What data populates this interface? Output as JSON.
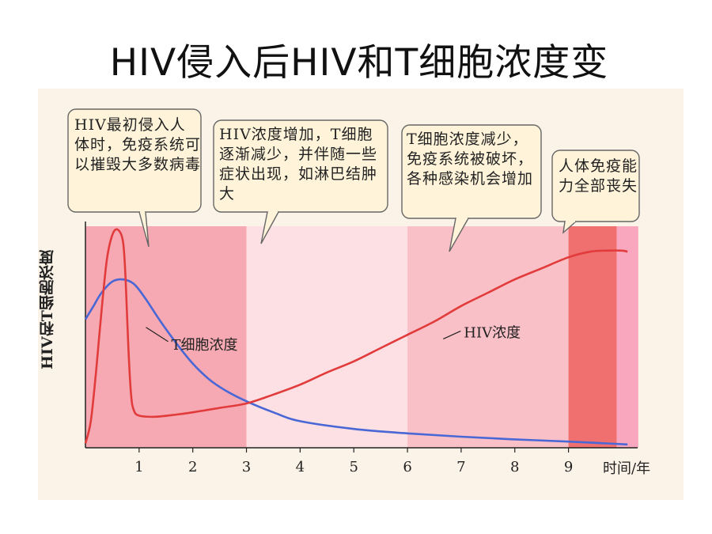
{
  "slide": {
    "title": "HIV侵入后HIV和T细胞浓度变"
  },
  "callouts": [
    {
      "text": "HIV最初侵入人体时，免疫系统可以摧毁大多数病毒"
    },
    {
      "text": "HIV浓度增加，T细胞逐渐减少，并伴随一些症状出现，如淋巴结肿大"
    },
    {
      "text": "T细胞浓度减少，免疫系统被破坏，各种感染机会增加"
    },
    {
      "text": "人体免疫能力全部丧失"
    }
  ],
  "chart_data": {
    "type": "line",
    "xlabel": "时间/年",
    "ylabel": "HIV和T细胞浓度",
    "xlim": [
      0,
      10.2
    ],
    "ylim": [
      0,
      1
    ],
    "x_ticks": [
      "1",
      "2",
      "3",
      "4",
      "5",
      "6",
      "7",
      "8",
      "9"
    ],
    "phases": [
      {
        "from": 0,
        "to": 3,
        "color": "#f6a9b2"
      },
      {
        "from": 3,
        "to": 6,
        "color": "#fde0e3"
      },
      {
        "from": 6,
        "to": 9,
        "color": "#fac0c7"
      },
      {
        "from": 9,
        "to": 9.9,
        "color": "#f06f6f"
      },
      {
        "from": 9.9,
        "to": 10.3,
        "color": "#f8a7be"
      }
    ],
    "series": [
      {
        "name": "T细胞浓度",
        "color": "#4a67d6",
        "label_at": [
          1.6,
          0.465
        ],
        "points": [
          [
            0,
            0.58
          ],
          [
            0.15,
            0.64
          ],
          [
            0.3,
            0.7
          ],
          [
            0.5,
            0.75
          ],
          [
            0.7,
            0.76
          ],
          [
            0.9,
            0.74
          ],
          [
            1.1,
            0.68
          ],
          [
            1.4,
            0.57
          ],
          [
            1.7,
            0.47
          ],
          [
            2.0,
            0.38
          ],
          [
            2.3,
            0.31
          ],
          [
            2.6,
            0.26
          ],
          [
            3.0,
            0.21
          ],
          [
            3.5,
            0.16
          ],
          [
            4.0,
            0.12
          ],
          [
            5.0,
            0.085
          ],
          [
            6.0,
            0.065
          ],
          [
            7.0,
            0.05
          ],
          [
            8.0,
            0.038
          ],
          [
            9.0,
            0.028
          ],
          [
            10.1,
            0.015
          ]
        ]
      },
      {
        "name": "HIV浓度",
        "color": "#e23b3b",
        "label_at": [
          7.05,
          0.52
        ],
        "points": [
          [
            0,
            0.02
          ],
          [
            0.1,
            0.12
          ],
          [
            0.2,
            0.35
          ],
          [
            0.3,
            0.62
          ],
          [
            0.4,
            0.85
          ],
          [
            0.5,
            0.96
          ],
          [
            0.6,
            0.985
          ],
          [
            0.7,
            0.93
          ],
          [
            0.75,
            0.75
          ],
          [
            0.8,
            0.45
          ],
          [
            0.85,
            0.24
          ],
          [
            0.9,
            0.17
          ],
          [
            1.0,
            0.145
          ],
          [
            1.3,
            0.14
          ],
          [
            1.7,
            0.15
          ],
          [
            2.0,
            0.16
          ],
          [
            2.5,
            0.18
          ],
          [
            3.0,
            0.2
          ],
          [
            3.5,
            0.24
          ],
          [
            4.0,
            0.285
          ],
          [
            4.5,
            0.34
          ],
          [
            5.0,
            0.39
          ],
          [
            5.5,
            0.45
          ],
          [
            6.0,
            0.51
          ],
          [
            6.5,
            0.57
          ],
          [
            7.0,
            0.64
          ],
          [
            7.5,
            0.7
          ],
          [
            8.0,
            0.76
          ],
          [
            8.5,
            0.81
          ],
          [
            9.0,
            0.86
          ],
          [
            9.4,
            0.885
          ],
          [
            9.7,
            0.89
          ],
          [
            10.0,
            0.89
          ],
          [
            10.1,
            0.885
          ]
        ]
      }
    ]
  }
}
